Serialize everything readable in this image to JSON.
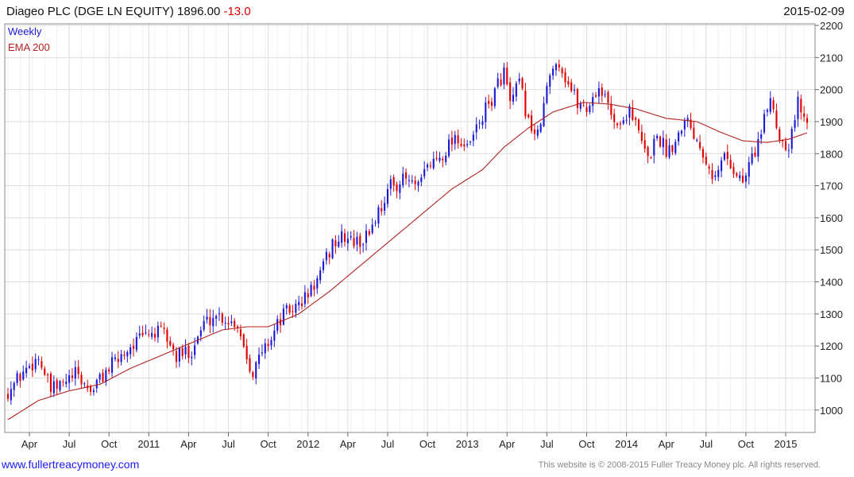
{
  "header": {
    "title": "Diageo PLC (DGE LN EQUITY) 1896.00",
    "change": "-13.0",
    "date": "2015-02-09"
  },
  "footer": {
    "website": "www.fullertreacymoney.com",
    "copyright": "This website is © 2008-2015 Fuller Treacy Money plc. All rights reserved."
  },
  "colors": {
    "up": "#1a1ad6",
    "down": "#e00000",
    "ema": "#b22222",
    "grid": "#dddddd"
  },
  "chart_data": {
    "type": "line",
    "series": [
      {
        "name": "Weekly",
        "style": "candlestick"
      },
      {
        "name": "EMA 200",
        "style": "line"
      }
    ],
    "ylim": [
      930,
      2205
    ],
    "yticks": [
      1000,
      1100,
      1200,
      1300,
      1400,
      1500,
      1600,
      1700,
      1800,
      1900,
      2000,
      2100,
      2200
    ],
    "xticks": [
      "Apr",
      "Jul",
      "Oct",
      "2011",
      "Apr",
      "Jul",
      "Oct",
      "2012",
      "Apr",
      "Jul",
      "Oct",
      "2013",
      "Apr",
      "Jul",
      "Oct",
      "2014",
      "Apr",
      "Jul",
      "Oct",
      "2015"
    ],
    "week_count": 262,
    "xtick_weeks": [
      7,
      20,
      33,
      46,
      59,
      72,
      85,
      98,
      111,
      124,
      137,
      150,
      163,
      176,
      189,
      202,
      215,
      228,
      241,
      254
    ],
    "close_anchors": [
      [
        0,
        1060
      ],
      [
        6,
        1130
      ],
      [
        10,
        1165
      ],
      [
        14,
        1060
      ],
      [
        18,
        1080
      ],
      [
        22,
        1110
      ],
      [
        27,
        1060
      ],
      [
        32,
        1120
      ],
      [
        36,
        1160
      ],
      [
        40,
        1200
      ],
      [
        46,
        1240
      ],
      [
        51,
        1240
      ],
      [
        55,
        1165
      ],
      [
        60,
        1190
      ],
      [
        64,
        1270
      ],
      [
        68,
        1300
      ],
      [
        72,
        1280
      ],
      [
        75,
        1270
      ],
      [
        78,
        1170
      ],
      [
        80,
        1120
      ],
      [
        83,
        1180
      ],
      [
        86,
        1230
      ],
      [
        90,
        1300
      ],
      [
        94,
        1320
      ],
      [
        98,
        1360
      ],
      [
        102,
        1420
      ],
      [
        106,
        1520
      ],
      [
        110,
        1540
      ],
      [
        114,
        1520
      ],
      [
        117,
        1540
      ],
      [
        121,
        1620
      ],
      [
        125,
        1700
      ],
      [
        130,
        1720
      ],
      [
        134,
        1690
      ],
      [
        137,
        1760
      ],
      [
        142,
        1800
      ],
      [
        146,
        1860
      ],
      [
        150,
        1810
      ],
      [
        154,
        1900
      ],
      [
        158,
        1970
      ],
      [
        162,
        2060
      ],
      [
        164,
        1950
      ],
      [
        167,
        2020
      ],
      [
        170,
        1900
      ],
      [
        173,
        1850
      ],
      [
        176,
        2000
      ],
      [
        179,
        2100
      ],
      [
        182,
        2040
      ],
      [
        186,
        1960
      ],
      [
        189,
        1940
      ],
      [
        193,
        2010
      ],
      [
        197,
        1930
      ],
      [
        200,
        1880
      ],
      [
        203,
        1950
      ],
      [
        206,
        1860
      ],
      [
        209,
        1780
      ],
      [
        212,
        1860
      ],
      [
        215,
        1810
      ],
      [
        218,
        1840
      ],
      [
        221,
        1920
      ],
      [
        225,
        1850
      ],
      [
        228,
        1790
      ],
      [
        231,
        1720
      ],
      [
        234,
        1800
      ],
      [
        237,
        1750
      ],
      [
        240,
        1710
      ],
      [
        243,
        1790
      ],
      [
        246,
        1860
      ],
      [
        249,
        1980
      ],
      [
        252,
        1850
      ],
      [
        255,
        1830
      ],
      [
        258,
        1960
      ],
      [
        260,
        1909
      ],
      [
        261,
        1896
      ]
    ],
    "ema_anchors": [
      [
        0,
        970
      ],
      [
        10,
        1030
      ],
      [
        20,
        1060
      ],
      [
        30,
        1080
      ],
      [
        40,
        1130
      ],
      [
        50,
        1170
      ],
      [
        60,
        1210
      ],
      [
        70,
        1250
      ],
      [
        78,
        1260
      ],
      [
        85,
        1260
      ],
      [
        95,
        1300
      ],
      [
        105,
        1370
      ],
      [
        115,
        1450
      ],
      [
        125,
        1530
      ],
      [
        135,
        1610
      ],
      [
        145,
        1690
      ],
      [
        155,
        1750
      ],
      [
        162,
        1820
      ],
      [
        170,
        1880
      ],
      [
        178,
        1930
      ],
      [
        188,
        1960
      ],
      [
        196,
        1955
      ],
      [
        205,
        1940
      ],
      [
        215,
        1910
      ],
      [
        225,
        1900
      ],
      [
        232,
        1870
      ],
      [
        240,
        1840
      ],
      [
        248,
        1835
      ],
      [
        255,
        1845
      ],
      [
        261,
        1865
      ]
    ]
  }
}
